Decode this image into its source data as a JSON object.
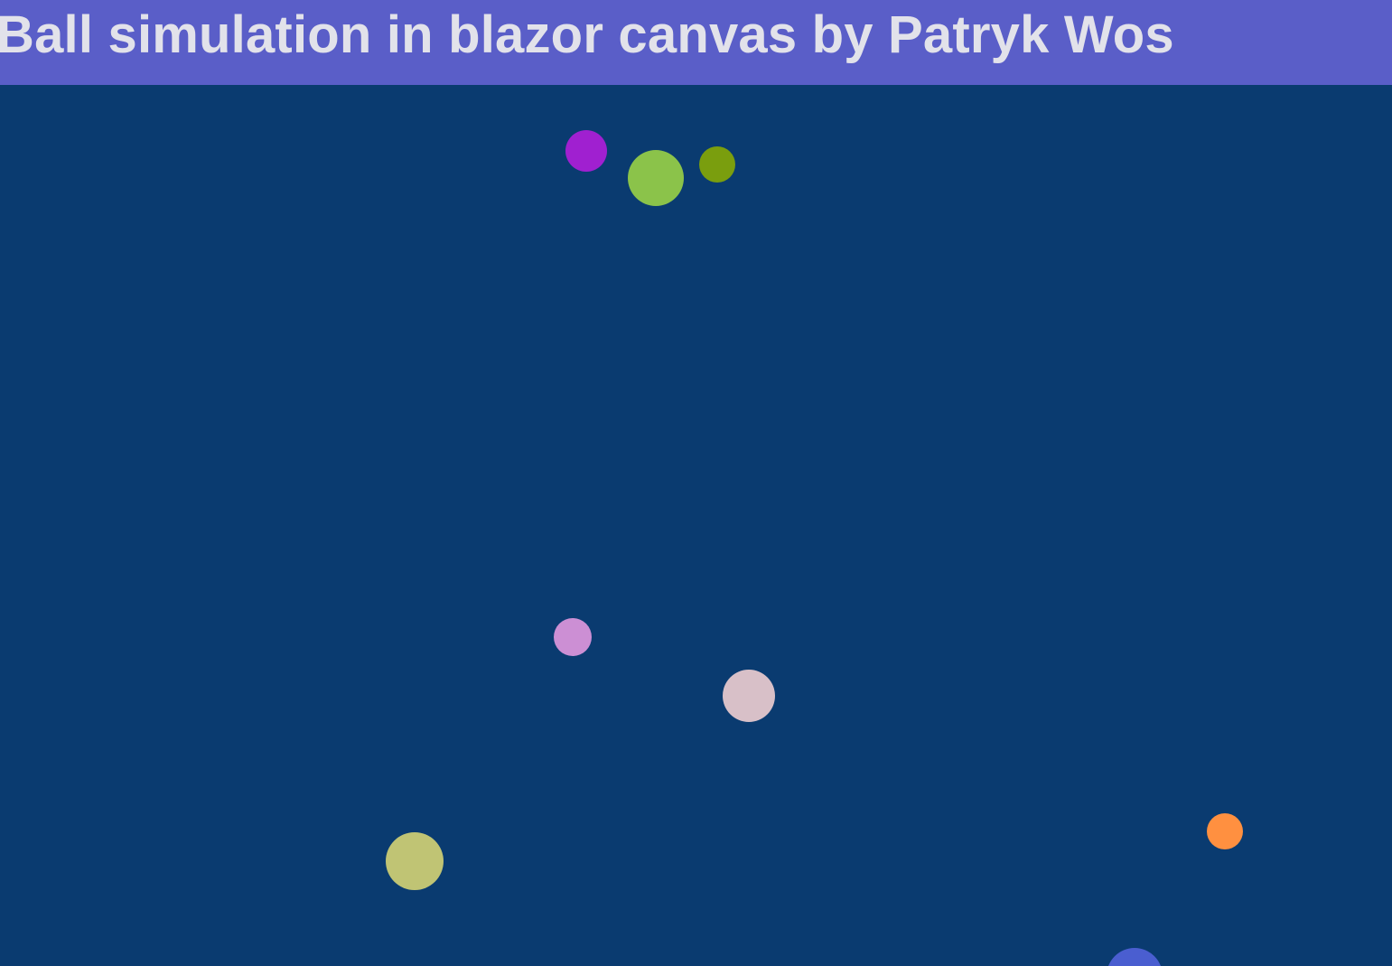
{
  "header": {
    "title": "Ball simulation in blazor canvas by Patryk Wos"
  },
  "colors": {
    "header_background": "#5a5ec8",
    "canvas_background": "#0a3b70",
    "title_text": "#e2e2ea"
  },
  "balls": [
    {
      "name": "ball-purple",
      "color": "#a020d0"
    },
    {
      "name": "ball-light-green",
      "color": "#8bc34a"
    },
    {
      "name": "ball-olive",
      "color": "#7a9e0e"
    },
    {
      "name": "ball-lavender",
      "color": "#cc8fd4"
    },
    {
      "name": "ball-pale-pink",
      "color": "#d8c0c8"
    },
    {
      "name": "ball-khaki",
      "color": "#c0c474"
    },
    {
      "name": "ball-orange",
      "color": "#ff9040"
    },
    {
      "name": "ball-blue",
      "color": "#4a5ed0"
    }
  ]
}
